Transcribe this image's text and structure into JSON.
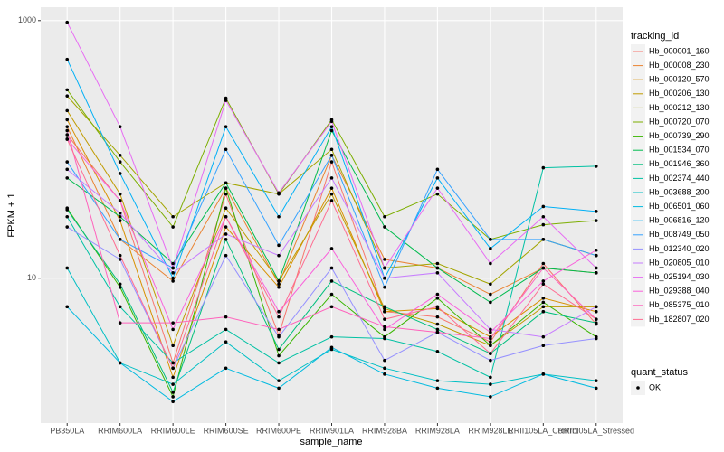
{
  "chart_data": {
    "type": "line",
    "x_label": "sample_name",
    "y_label": "FPKM + 1",
    "log_y": true,
    "grid": true,
    "legend": "right",
    "legend_title": "tracking_id",
    "point_legend_title": "quant_status",
    "point_legend_labels": [
      "OK"
    ],
    "point_color": "#000000",
    "categories": [
      "PB350LA",
      "RRIM600LA",
      "RRIM600LE",
      "RRIM600SE",
      "RRIM600PE",
      "RRIM901LA",
      "RRIM928BA",
      "RRIM928LA",
      "RRIM928LE",
      "RRII105LA_Control",
      "RRII105LA_Stressed"
    ],
    "ylim": [
      0.75,
      1270
    ],
    "yticks": [
      10,
      1000
    ],
    "series": [
      {
        "name": "Hb_000001_160",
        "color": "#F8766D",
        "values": [
          130,
          40,
          2.2,
          45,
          3.6,
          80,
          5.5,
          5,
          3.2,
          13,
          4.4
        ]
      },
      {
        "name": "Hb_000008_230",
        "color": "#EA8331",
        "values": [
          150,
          20,
          9.5,
          50,
          9,
          90,
          14,
          12,
          7.5,
          12,
          11
        ]
      },
      {
        "name": "Hb_000120_570",
        "color": "#D89000",
        "values": [
          170,
          28,
          1.7,
          25,
          8.5,
          50,
          5.5,
          5.8,
          3.5,
          7,
          5.5
        ]
      },
      {
        "name": "Hb_000206_130",
        "color": "#C09B00",
        "values": [
          200,
          45,
          3,
          35,
          9.5,
          45,
          5.8,
          4.4,
          3,
          6,
          6
        ]
      },
      {
        "name": "Hb_000212_130",
        "color": "#A3A500",
        "values": [
          260,
          90,
          30,
          55,
          45,
          100,
          12,
          13,
          9,
          20,
          15
        ]
      },
      {
        "name": "Hb_000720_070",
        "color": "#7CAE00",
        "values": [
          290,
          80,
          25,
          250,
          45,
          170,
          30,
          45,
          20,
          26,
          28
        ]
      },
      {
        "name": "Hb_000739_290",
        "color": "#39B600",
        "values": [
          35,
          8.5,
          1.2,
          50,
          2.5,
          7.5,
          3.5,
          7,
          3,
          6.5,
          3.5
        ]
      },
      {
        "name": "Hb_001534_070",
        "color": "#00BB4E",
        "values": [
          60,
          30,
          13,
          55,
          9.5,
          140,
          25,
          12,
          6.5,
          12,
          11
        ]
      },
      {
        "name": "Hb_001946_360",
        "color": "#00BF7D",
        "values": [
          34,
          9,
          1.3,
          20,
          2.8,
          9.5,
          6,
          4,
          2.6,
          5.5,
          4.5
        ]
      },
      {
        "name": "Hb_002374_440",
        "color": "#00C1A3",
        "values": [
          30,
          6,
          2.2,
          4,
          2.2,
          3.5,
          3.4,
          2.7,
          1.7,
          72,
          74
        ]
      },
      {
        "name": "Hb_003688_200",
        "color": "#00BFC4",
        "values": [
          12,
          2.2,
          1.5,
          3.2,
          1.6,
          2.8,
          2,
          1.6,
          1.5,
          1.8,
          1.6
        ]
      },
      {
        "name": "Hb_006501_060",
        "color": "#00BAE0",
        "values": [
          6,
          2.2,
          1.1,
          2,
          1.4,
          2.9,
          1.8,
          1.4,
          1.2,
          1.8,
          1.4
        ]
      },
      {
        "name": "Hb_006816_120",
        "color": "#00B0F6",
        "values": [
          500,
          65,
          10,
          150,
          30,
          150,
          10,
          60,
          17,
          36,
          33
        ]
      },
      {
        "name": "Hb_008749_050",
        "color": "#35A2FF",
        "values": [
          80,
          20,
          12,
          100,
          18,
          90,
          8.5,
          70,
          20,
          20,
          15
        ]
      },
      {
        "name": "Hb_012340_020",
        "color": "#9590FF",
        "values": [
          25,
          14,
          2,
          15,
          3.5,
          12,
          2.3,
          3.8,
          2.3,
          3,
          3.4
        ]
      },
      {
        "name": "Hb_020805_010",
        "color": "#C77CFF",
        "values": [
          70,
          32,
          11,
          22,
          15,
          60,
          10,
          11,
          4,
          3.5,
          6
        ]
      },
      {
        "name": "Hb_025194_030",
        "color": "#E76BF3",
        "values": [
          970,
          150,
          12,
          240,
          46,
          165,
          12,
          50,
          13,
          30,
          12
        ]
      },
      {
        "name": "Hb_029388_040",
        "color": "#FA62DB",
        "values": [
          120,
          40,
          4,
          30,
          5.5,
          17,
          4,
          7.5,
          3.8,
          9.5,
          16.5
        ]
      },
      {
        "name": "Hb_085375_010",
        "color": "#FF62BC",
        "values": [
          140,
          4.5,
          4.5,
          5,
          4,
          6,
          4.2,
          3.8,
          3.4,
          12,
          4.8
        ]
      },
      {
        "name": "Hb_182807_020",
        "color": "#FF6C91",
        "values": [
          120,
          15,
          2,
          30,
          5,
          40,
          4.8,
          6,
          2.6,
          9,
          4.8
        ]
      }
    ]
  }
}
